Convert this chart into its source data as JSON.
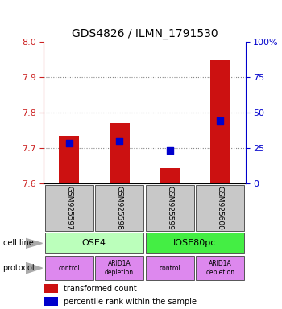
{
  "title": "GDS4826 / ILMN_1791530",
  "samples": [
    "GSM925597",
    "GSM925598",
    "GSM925599",
    "GSM925600"
  ],
  "red_values": [
    7.735,
    7.77,
    7.645,
    7.95
  ],
  "blue_values": [
    7.715,
    7.72,
    7.693,
    7.778
  ],
  "ylim_left": [
    7.6,
    8.0
  ],
  "ylim_right": [
    0,
    100
  ],
  "yticks_left": [
    7.6,
    7.7,
    7.8,
    7.9,
    8.0
  ],
  "yticks_right": [
    0,
    25,
    50,
    75,
    100
  ],
  "cell_line_groups": [
    {
      "label": "OSE4",
      "cols": [
        0,
        1
      ],
      "color": "#bbffbb"
    },
    {
      "label": "IOSE80pc",
      "cols": [
        2,
        3
      ],
      "color": "#44ee44"
    }
  ],
  "prot_labels": [
    "control",
    "ARID1A\ndepletion",
    "control",
    "ARID1A\ndepletion"
  ],
  "prot_color": "#dd88ee",
  "bar_color": "#cc1111",
  "dot_color": "#0000cc",
  "bar_base": 7.6,
  "bar_width": 0.4,
  "dot_size": 30,
  "grid_color": "#888888",
  "left_axis_color": "#cc2222",
  "right_axis_color": "#0000cc",
  "sample_box_color": "#c8c8c8",
  "title_fontsize": 10
}
